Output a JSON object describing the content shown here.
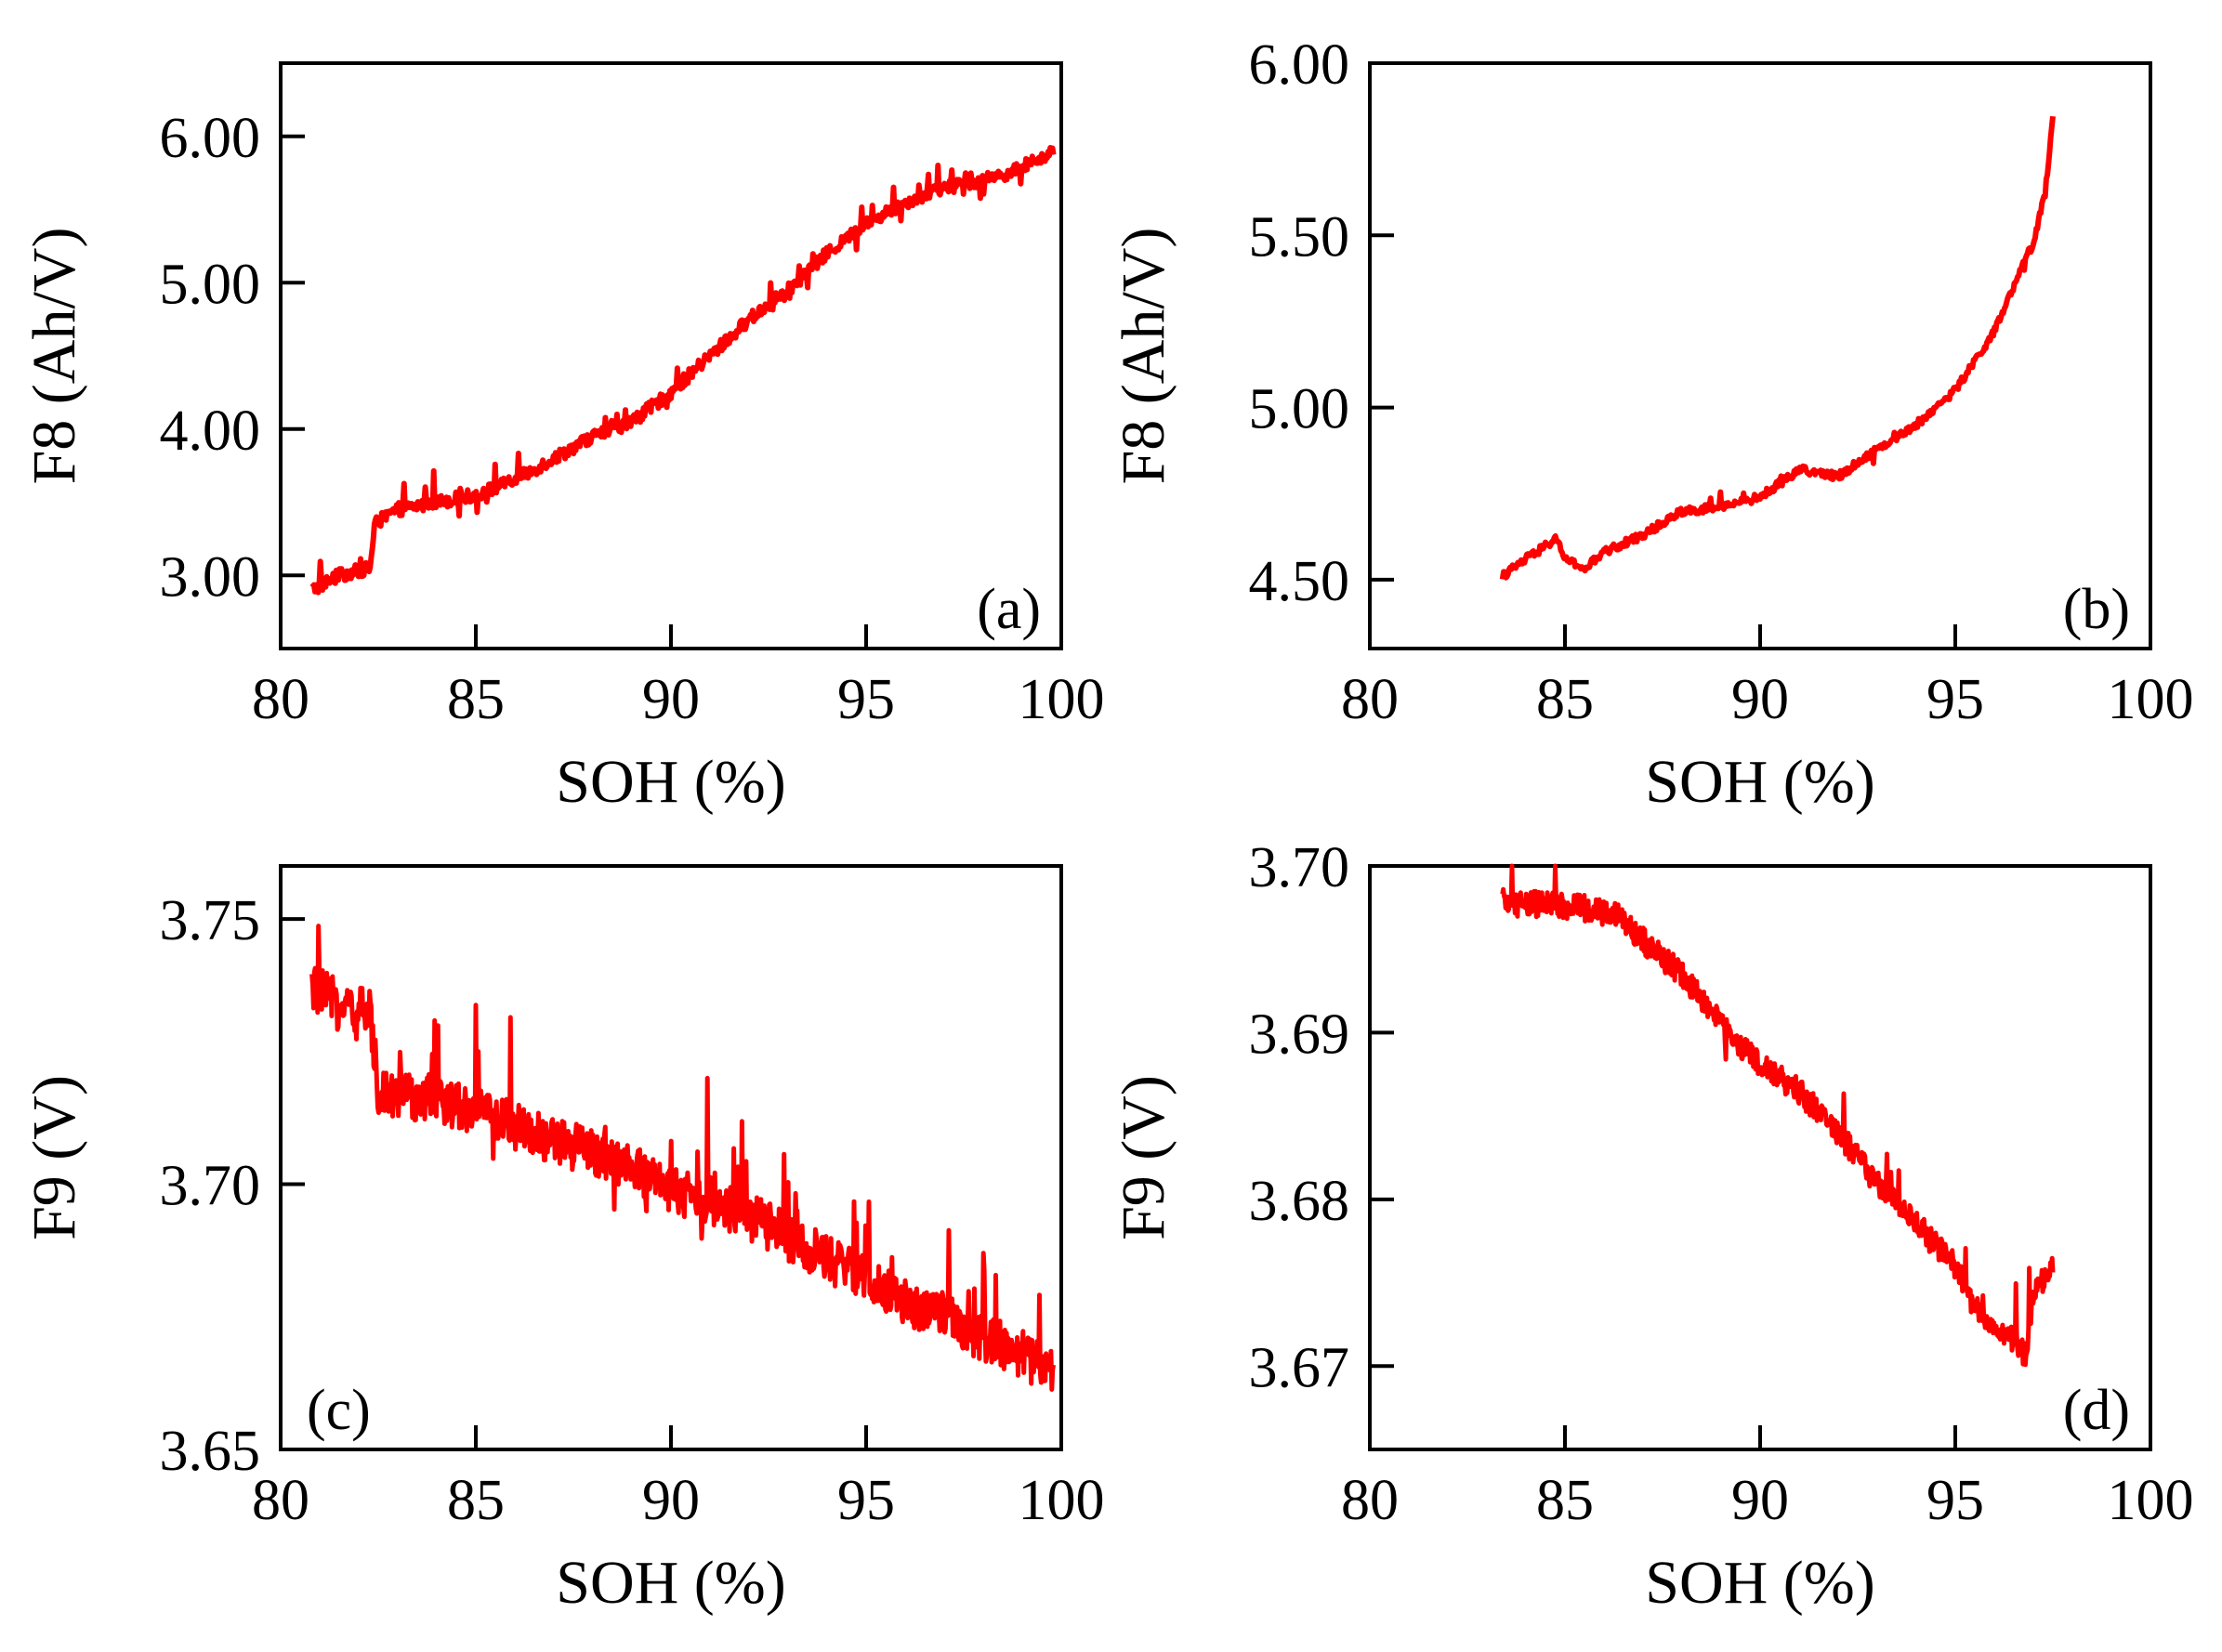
{
  "figure": {
    "line_color": "#ff0000"
  },
  "chart_data": [
    {
      "id": "a",
      "type": "line",
      "panel_label": "(a)",
      "label_corner": "bottom-right",
      "xlabel": "SOH (%)",
      "ylabel": "F8 (Ah/V)",
      "xlim": [
        80,
        100
      ],
      "ylim": [
        2.5,
        6.5
      ],
      "xticks": [
        80,
        85,
        90,
        95,
        100
      ],
      "xtick_labels": [
        "80",
        "85",
        "90",
        "95",
        "100"
      ],
      "yticks": [
        3.0,
        4.0,
        5.0,
        6.0
      ],
      "ytick_labels": [
        "3.00",
        "4.00",
        "5.00",
        "6.00"
      ],
      "noise": 0.045,
      "spike_rate": 0.08,
      "spike_size": 0.15,
      "samples": 700,
      "series": [
        {
          "name": "F8",
          "x": [
            80.8,
            81.5,
            82.3,
            82.4,
            83.0,
            84.0,
            85.0,
            86.0,
            87.0,
            88.0,
            89.0,
            90.0,
            91.0,
            92.0,
            93.0,
            94.0,
            95.0,
            96.0,
            97.0,
            98.0,
            99.0,
            99.8
          ],
          "y": [
            2.9,
            3.0,
            3.05,
            3.35,
            3.45,
            3.5,
            3.55,
            3.65,
            3.8,
            3.95,
            4.05,
            4.25,
            4.5,
            4.75,
            4.95,
            5.2,
            5.4,
            5.55,
            5.65,
            5.7,
            5.78,
            5.9
          ]
        }
      ]
    },
    {
      "id": "b",
      "type": "line",
      "panel_label": "(b)",
      "label_corner": "bottom-right",
      "xlabel": "SOH (%)",
      "ylabel": "F8 (Ah/V)",
      "xlim": [
        80,
        100
      ],
      "ylim": [
        4.3,
        6.0
      ],
      "xticks": [
        80,
        85,
        90,
        95,
        100
      ],
      "xtick_labels": [
        "80",
        "85",
        "90",
        "95",
        "100"
      ],
      "yticks": [
        4.5,
        5.0,
        5.5,
        6.0
      ],
      "ytick_labels": [
        "4.50",
        "5.00",
        "5.50",
        "6.00"
      ],
      "noise": 0.012,
      "spike_rate": 0.02,
      "spike_size": 0.04,
      "samples": 500,
      "series": [
        {
          "name": "F8",
          "x": [
            83.4,
            84.0,
            84.8,
            85.0,
            85.5,
            86.0,
            87.0,
            88.0,
            89.0,
            90.0,
            91.0,
            92.0,
            93.0,
            94.0,
            95.0,
            96.0,
            96.5,
            97.0,
            97.3,
            97.5
          ],
          "y": [
            4.51,
            4.56,
            4.62,
            4.56,
            4.53,
            4.58,
            4.63,
            4.7,
            4.71,
            4.74,
            4.82,
            4.8,
            4.88,
            4.95,
            5.05,
            5.22,
            5.35,
            5.48,
            5.62,
            5.85
          ]
        }
      ]
    },
    {
      "id": "c",
      "type": "line",
      "panel_label": "(c)",
      "label_corner": "bottom-left",
      "xlabel": "SOH (%)",
      "ylabel": "F9 (V)",
      "xlim": [
        80,
        100
      ],
      "ylim": [
        3.65,
        3.76
      ],
      "xticks": [
        80,
        85,
        90,
        95,
        100
      ],
      "xtick_labels": [
        "80",
        "85",
        "90",
        "95",
        "100"
      ],
      "yticks": [
        3.65,
        3.7,
        3.75
      ],
      "ytick_labels": [
        "3.65",
        "3.70",
        "3.75"
      ],
      "noise": 0.0045,
      "spike_rate": 0.06,
      "spike_size": 0.016,
      "samples": 900,
      "series": [
        {
          "name": "F9",
          "x": [
            80.8,
            81.5,
            82.3,
            82.5,
            83.0,
            84.0,
            85.0,
            86.0,
            87.0,
            88.0,
            89.0,
            90.0,
            91.0,
            92.0,
            93.0,
            94.0,
            95.0,
            96.0,
            97.0,
            98.0,
            99.0,
            99.8
          ],
          "y": [
            3.737,
            3.734,
            3.732,
            3.718,
            3.717,
            3.716,
            3.714,
            3.711,
            3.708,
            3.706,
            3.703,
            3.699,
            3.697,
            3.694,
            3.69,
            3.686,
            3.682,
            3.678,
            3.675,
            3.671,
            3.668,
            3.664
          ]
        }
      ]
    },
    {
      "id": "d",
      "type": "line",
      "panel_label": "(d)",
      "label_corner": "bottom-right",
      "xlabel": "SOH (%)",
      "ylabel": "F9 (V)",
      "xlim": [
        80,
        100
      ],
      "ylim": [
        3.665,
        3.7
      ],
      "xticks": [
        80,
        85,
        90,
        95,
        100
      ],
      "xtick_labels": [
        "80",
        "85",
        "90",
        "95",
        "100"
      ],
      "yticks": [
        3.67,
        3.68,
        3.69,
        3.7
      ],
      "ytick_labels": [
        "3.67",
        "3.68",
        "3.69",
        "3.70"
      ],
      "noise": 0.0008,
      "spike_rate": 0.04,
      "spike_size": 0.0025,
      "samples": 700,
      "series": [
        {
          "name": "F9",
          "x": [
            83.4,
            84.5,
            85.5,
            86.5,
            87.0,
            88.0,
            89.0,
            90.0,
            91.0,
            92.0,
            93.0,
            94.0,
            95.0,
            95.5,
            96.0,
            96.5,
            96.8,
            97.0,
            97.5
          ],
          "y": [
            3.6978,
            3.6977,
            3.6975,
            3.6968,
            3.6955,
            3.6935,
            3.6905,
            3.688,
            3.6865,
            3.684,
            3.681,
            3.6785,
            3.676,
            3.6735,
            3.6725,
            3.6715,
            3.6705,
            3.6745,
            3.676
          ]
        }
      ]
    }
  ]
}
